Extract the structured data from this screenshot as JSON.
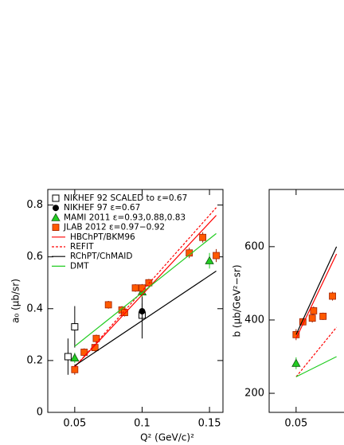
{
  "chart_data": [
    {
      "type": "scatter",
      "xlabel": "Q² (GeV/c)²",
      "ylabel": "a₀ (μb/sr)",
      "xlim": [
        0.03,
        0.16
      ],
      "xticks": [
        0.05,
        0.1,
        0.15
      ],
      "ylim": [
        0,
        0.86
      ],
      "yticks": [
        0,
        0.2,
        0.4,
        0.6,
        0.8
      ],
      "legend": "top-left",
      "series": [
        {
          "name": "NIKHEF 92 SCALED to ε=0.67",
          "marker": "open-square",
          "color": "#000000",
          "x": [
            0.045,
            0.05,
            0.1
          ],
          "values": [
            0.215,
            0.33,
            0.375
          ],
          "errors": [
            0.07,
            0.08,
            0.09
          ]
        },
        {
          "name": "NIKHEF 97 ε=0.67",
          "marker": "circle",
          "color": "#000000",
          "x": [
            0.1
          ],
          "values": [
            0.39
          ],
          "errors": [
            0.03
          ]
        },
        {
          "name": "MAMI 2011 ε=0.93,0.88,0.83",
          "marker": "triangle",
          "color": "#22cc22",
          "x": [
            0.05,
            0.1,
            0.15
          ],
          "values": [
            0.21,
            0.465,
            0.585
          ],
          "errors": [
            0.02,
            0.02,
            0.03
          ]
        },
        {
          "name": "JLAB 2012 ε=0.97−0.92",
          "marker": "square",
          "color": "#ff5a00",
          "x": [
            0.05,
            0.057,
            0.065,
            0.066,
            0.075,
            0.085,
            0.087,
            0.095,
            0.1,
            0.105,
            0.135,
            0.145,
            0.155
          ],
          "values": [
            0.165,
            0.232,
            0.25,
            0.285,
            0.415,
            0.395,
            0.385,
            0.48,
            0.48,
            0.5,
            0.615,
            0.675,
            0.605
          ],
          "errors": [
            0.02,
            0.015,
            0.015,
            0.015,
            0.015,
            0.015,
            0.015,
            0.015,
            0.015,
            0.015,
            0.02,
            0.02,
            0.025
          ]
        },
        {
          "name": "HBChPT/BKM96",
          "line": "solid",
          "color": "#ff0000",
          "x": [
            0.05,
            0.155
          ],
          "values": [
            0.175,
            0.76
          ]
        },
        {
          "name": "REFIT",
          "line": "dashed",
          "color": "#ff0000",
          "x": [
            0.05,
            0.155
          ],
          "values": [
            0.175,
            0.79
          ]
        },
        {
          "name": "RChPT/ChMAID",
          "line": "solid",
          "color": "#000000",
          "x": [
            0.05,
            0.155
          ],
          "values": [
            0.18,
            0.545
          ]
        },
        {
          "name": "DMT",
          "line": "solid",
          "color": "#22cc22",
          "x": [
            0.05,
            0.155
          ],
          "values": [
            0.255,
            0.69
          ]
        }
      ]
    },
    {
      "type": "scatter",
      "xlabel": "Q² (GeV/c)²",
      "ylabel": "b (μb/GeV²−sr)",
      "xlim": [
        0.03,
        0.16
      ],
      "xticks": [
        0.05
      ],
      "ylim": [
        148,
        756
      ],
      "yticks": [
        200,
        400,
        600
      ],
      "series": [
        {
          "marker": "triangle",
          "color": "#22cc22",
          "x": [
            0.05
          ],
          "values": [
            282
          ],
          "errors": [
            16
          ]
        },
        {
          "marker": "square",
          "color": "#ff5a00",
          "x": [
            0.05,
            0.055,
            0.062,
            0.063,
            0.07,
            0.077
          ],
          "values": [
            360,
            395,
            405,
            425,
            410,
            465
          ],
          "errors": [
            15,
            10,
            12,
            12,
            10,
            12
          ]
        },
        {
          "line": "solid",
          "color": "#000000",
          "x": [
            0.05,
            0.08
          ],
          "values": [
            360,
            600
          ]
        },
        {
          "line": "solid",
          "color": "#ff0000",
          "x": [
            0.05,
            0.08
          ],
          "values": [
            350,
            580
          ]
        },
        {
          "line": "dashed",
          "color": "#ff0000",
          "x": [
            0.05,
            0.08
          ],
          "values": [
            245,
            380
          ]
        },
        {
          "line": "solid",
          "color": "#22cc22",
          "x": [
            0.05,
            0.08
          ],
          "values": [
            245,
            300
          ]
        }
      ]
    }
  ]
}
